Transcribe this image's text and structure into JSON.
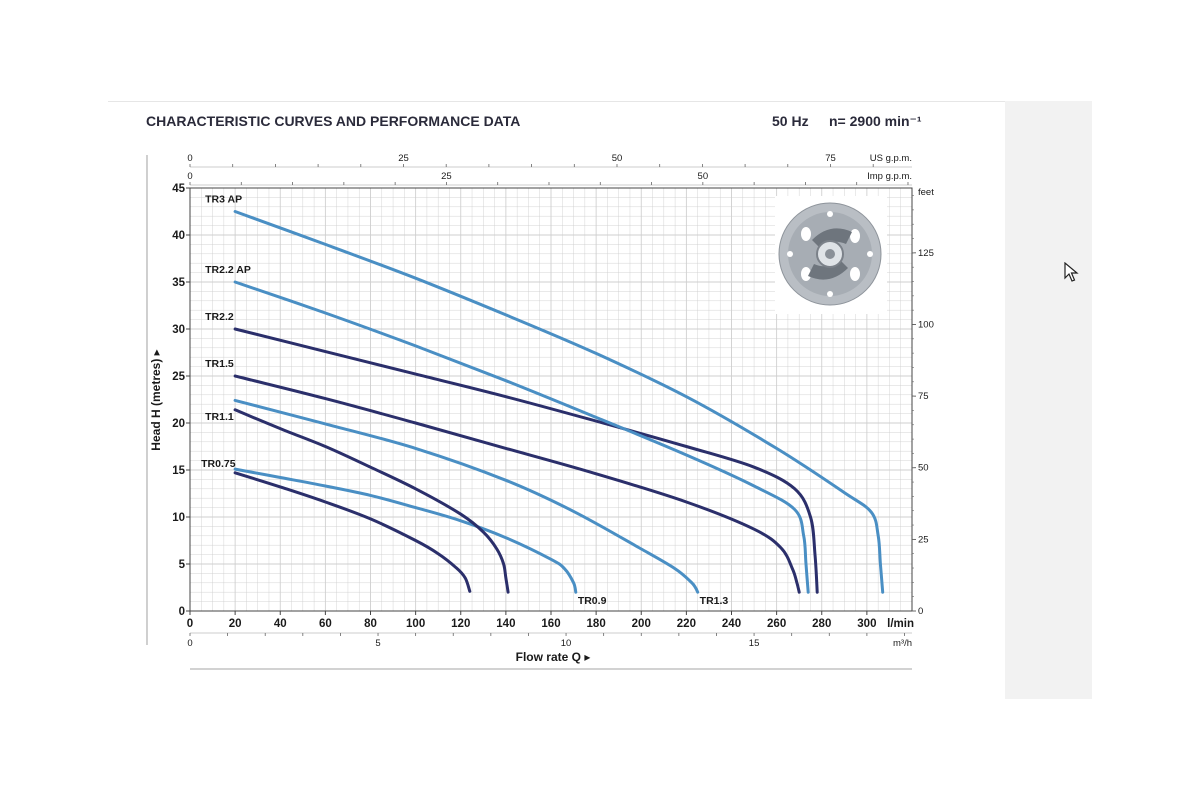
{
  "header": {
    "title": "CHARACTERISTIC CURVES AND PERFORMANCE DATA",
    "frequency": "50 Hz",
    "speed": "n= 2900 min⁻¹"
  },
  "colors": {
    "dark_series": "#2b2f6b",
    "light_series": "#4a8fc4",
    "grid": "#cfcfcf",
    "axis": "#444444",
    "text": "#1a1a1a"
  },
  "icons": {
    "impeller": "impeller-photo-icon",
    "cursor": "cursor-arrow-icon"
  },
  "chart_data": {
    "type": "line",
    "title": "CHARACTERISTIC CURVES AND PERFORMANCE DATA",
    "xlabel": "Flow rate Q ▸",
    "ylabel": "Head H (metres) ▸",
    "xlim": [
      0,
      320
    ],
    "ylim": [
      0,
      45
    ],
    "grid": true,
    "legend": "labels-on-curves",
    "x_ticks": [
      0,
      20,
      40,
      60,
      80,
      100,
      120,
      140,
      160,
      180,
      200,
      220,
      240,
      260,
      280,
      300
    ],
    "x_unit": "l/min",
    "y_ticks": [
      0,
      5,
      10,
      15,
      20,
      25,
      30,
      35,
      40,
      45
    ],
    "secondary_axes": {
      "us_gpm": {
        "label": "US g.p.m.",
        "ticks": [
          0,
          25,
          50,
          75
        ],
        "lpm_per_unit": 3.785
      },
      "imp_gpm": {
        "label": "Imp g.p.m.",
        "ticks": [
          0,
          25,
          50
        ],
        "lpm_per_unit": 4.546
      },
      "m3h": {
        "label": "m³/h",
        "ticks": [
          0,
          5,
          10,
          15
        ],
        "lpm_per_unit": 16.667
      },
      "feet": {
        "label": "feet",
        "ticks": [
          0,
          25,
          50,
          75,
          100,
          125
        ],
        "m_per_unit": 0.3048
      }
    },
    "series": [
      {
        "name": "TR0.75",
        "tone": "dark",
        "x": [
          20,
          40,
          60,
          80,
          100,
          110,
          118,
          122,
          124
        ],
        "y": [
          14.7,
          13.2,
          11.6,
          9.8,
          7.5,
          6.1,
          4.6,
          3.5,
          2.1
        ]
      },
      {
        "name": "TR0.9",
        "tone": "light",
        "x": [
          20,
          40,
          60,
          80,
          100,
          120,
          140,
          160,
          166,
          170,
          171
        ],
        "y": [
          15.1,
          14.2,
          13.3,
          12.3,
          11.0,
          9.6,
          7.8,
          5.5,
          4.5,
          3.0,
          2.0
        ]
      },
      {
        "name": "TR1.1",
        "tone": "dark",
        "x": [
          20,
          40,
          60,
          80,
          100,
          120,
          130,
          136,
          139,
          140,
          141
        ],
        "y": [
          21.4,
          19.4,
          17.5,
          15.3,
          13.0,
          10.3,
          8.4,
          6.6,
          5.0,
          3.5,
          2.0
        ]
      },
      {
        "name": "TR1.3",
        "tone": "light",
        "x": [
          20,
          60,
          100,
          140,
          170,
          200,
          215,
          222,
          224,
          225
        ],
        "y": [
          22.4,
          19.9,
          17.3,
          13.9,
          10.6,
          6.6,
          4.5,
          3.1,
          2.5,
          2.0
        ]
      },
      {
        "name": "TR1.5",
        "tone": "dark",
        "x": [
          20,
          60,
          100,
          140,
          180,
          220,
          250,
          262,
          267,
          269,
          270
        ],
        "y": [
          25.0,
          22.6,
          20.0,
          17.3,
          14.6,
          11.6,
          8.7,
          6.7,
          4.5,
          3.0,
          2.0
        ]
      },
      {
        "name": "TR2.2",
        "tone": "dark",
        "x": [
          20,
          60,
          100,
          140,
          180,
          220,
          250,
          268,
          275,
          277,
          278
        ],
        "y": [
          30.0,
          27.6,
          25.2,
          22.8,
          20.2,
          17.5,
          15.3,
          13.0,
          10.0,
          6.0,
          2.0
        ]
      },
      {
        "name": "TR2.2 AP",
        "tone": "light",
        "x": [
          20,
          60,
          100,
          140,
          180,
          220,
          250,
          268,
          272,
          273,
          274
        ],
        "y": [
          35.0,
          31.7,
          28.2,
          24.5,
          20.6,
          16.6,
          13.3,
          10.8,
          8.0,
          5.0,
          2.0
        ]
      },
      {
        "name": "TR3 AP",
        "tone": "light",
        "x": [
          20,
          60,
          100,
          140,
          180,
          220,
          260,
          290,
          302,
          305,
          306,
          307
        ],
        "y": [
          42.5,
          39.0,
          35.4,
          31.5,
          27.4,
          22.8,
          17.3,
          12.6,
          10.5,
          8.0,
          5.0,
          2.0
        ]
      }
    ]
  }
}
